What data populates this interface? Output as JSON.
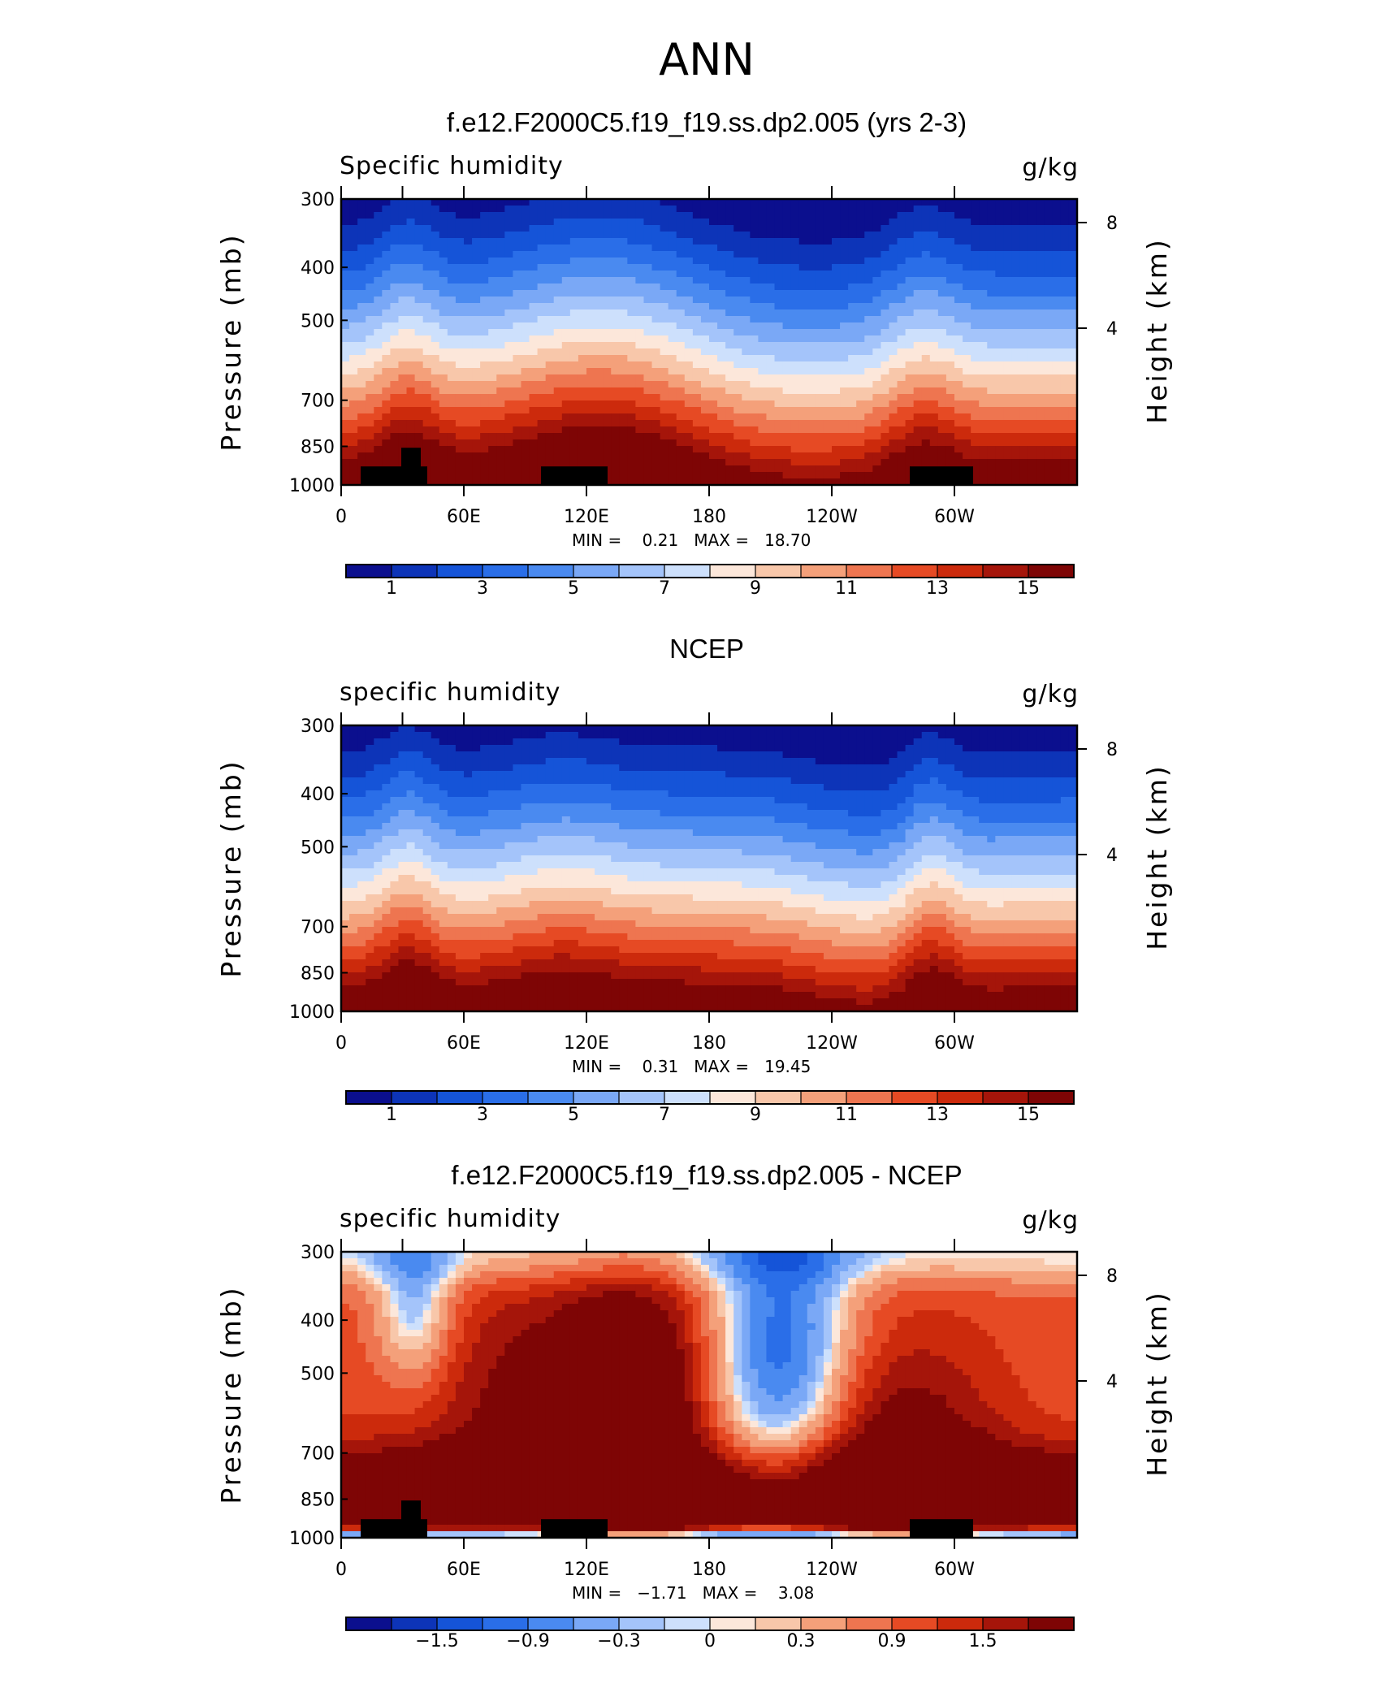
{
  "figure_title": "ANN",
  "colors": {
    "palette": [
      "#0b0f8e",
      "#0d34b8",
      "#1554d8",
      "#2a6ee8",
      "#4a8af0",
      "#7aa8f6",
      "#a4c4fa",
      "#cde0fc",
      "#fce7da",
      "#f8c7aa",
      "#f4a07a",
      "#ee7550",
      "#e64a24",
      "#cc2a0c",
      "#a5150a",
      "#7e0505"
    ]
  },
  "panels": [
    {
      "title": "f.e12.F2000C5.f19_f19.ss.dp2.005 (yrs 2-3)",
      "left_label": "Specific humidity",
      "right_label": "g/kg",
      "min_text": "MIN =    0.21   MAX =   18.70",
      "colorbar_labels": [
        "1",
        "3",
        "5",
        "7",
        "9",
        "11",
        "13",
        "15"
      ],
      "has_land": true
    },
    {
      "title": "NCEP",
      "left_label": "specific humidity",
      "right_label": "g/kg",
      "min_text": "MIN =    0.31   MAX =   19.45",
      "colorbar_labels": [
        "1",
        "3",
        "5",
        "7",
        "9",
        "11",
        "13",
        "15"
      ],
      "has_land": false
    },
    {
      "title": "f.e12.F2000C5.f19_f19.ss.dp2.005 - NCEP",
      "left_label": "specific humidity",
      "right_label": "g/kg",
      "min_text": "MIN =   −1.71   MAX =    3.08",
      "colorbar_labels": [
        "−1.5",
        "−0.9",
        "−0.3",
        "0",
        "0.3",
        "0.9",
        "1.5"
      ],
      "has_land": true
    }
  ],
  "axes": {
    "y_left_label": "Pressure (mb)",
    "y_right_label": "Height (km)",
    "pressure_ticks": [
      "300",
      "400",
      "500",
      "700",
      "850",
      "1000"
    ],
    "height_ticks": [
      "8",
      "4"
    ],
    "x_ticks": [
      "0",
      "60E",
      "120E",
      "180",
      "120W",
      "60W"
    ]
  },
  "chart_data": [
    {
      "type": "heatmap",
      "title": "f.e12.F2000C5.f19_f19.ss.dp2.005 (yrs 2-3)",
      "variable": "Specific humidity",
      "units": "g/kg",
      "x_ticks": [
        "0",
        "60E",
        "120E",
        "180",
        "120W",
        "60W"
      ],
      "y_ticks": [
        300,
        400,
        500,
        700,
        850,
        1000
      ],
      "y_scale": "log",
      "colorbar": {
        "levels": [
          1,
          2,
          3,
          4,
          5,
          6,
          7,
          8,
          9,
          10,
          11,
          12,
          13,
          14,
          15
        ],
        "labels": [
          1,
          3,
          5,
          7,
          9,
          11,
          13,
          15
        ]
      },
      "min": 0.21,
      "max": 18.7
    },
    {
      "type": "heatmap",
      "title": "NCEP",
      "variable": "specific humidity",
      "units": "g/kg",
      "x_ticks": [
        "0",
        "60E",
        "120E",
        "180",
        "120W",
        "60W"
      ],
      "y_ticks": [
        300,
        400,
        500,
        700,
        850,
        1000
      ],
      "y_scale": "log",
      "colorbar": {
        "levels": [
          1,
          2,
          3,
          4,
          5,
          6,
          7,
          8,
          9,
          10,
          11,
          12,
          13,
          14,
          15
        ],
        "labels": [
          1,
          3,
          5,
          7,
          9,
          11,
          13,
          15
        ]
      },
      "min": 0.31,
      "max": 19.45
    },
    {
      "type": "heatmap",
      "title": "f.e12.F2000C5.f19_f19.ss.dp2.005 - NCEP",
      "variable": "specific humidity",
      "units": "g/kg",
      "x_ticks": [
        "0",
        "60E",
        "120E",
        "180",
        "120W",
        "60W"
      ],
      "y_ticks": [
        300,
        400,
        500,
        700,
        850,
        1000
      ],
      "y_scale": "log",
      "colorbar": {
        "levels": [
          -1.8,
          -1.5,
          -1.2,
          -0.9,
          -0.6,
          -0.3,
          -0.1,
          0,
          0.1,
          0.3,
          0.6,
          0.9,
          1.2,
          1.5,
          1.8
        ],
        "labels": [
          -1.5,
          -0.9,
          -0.3,
          0,
          0.3,
          0.9,
          1.5
        ]
      },
      "min": -1.71,
      "max": 3.08
    }
  ]
}
